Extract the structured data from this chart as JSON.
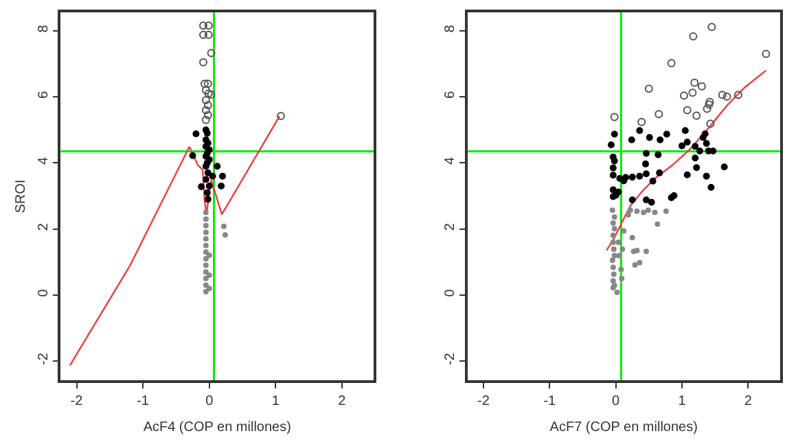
{
  "chart_data": [
    {
      "type": "scatter",
      "xlabel": "AcF4 (COP en millones)",
      "ylabel": "SROI",
      "xlim": [
        -2.24,
        2.48
      ],
      "ylim": [
        -2.58,
        8.56
      ],
      "xticks": [
        -2,
        -1,
        0,
        1,
        2
      ],
      "yticks": [
        -2,
        0,
        2,
        4,
        6,
        8
      ],
      "grid": false,
      "ref_lines": [
        {
          "axis": "y",
          "value": 4.35,
          "color": "#00ee00"
        },
        {
          "axis": "x",
          "value": 0.07,
          "color": "#00ee00"
        }
      ],
      "series": [
        {
          "marker": "circle",
          "color": "#555555",
          "x": [
            -0.09,
            -0.01,
            -0.09,
            -0.01,
            0.03,
            -0.09,
            0.03,
            -0.07,
            -0.02,
            -0.05,
            -0.01,
            -0.05,
            -0.02,
            -0.05,
            -0.02,
            -0.05,
            1.08
          ],
          "values": [
            8.16,
            8.16,
            7.88,
            7.88,
            7.33,
            7.05,
            6.07,
            6.4,
            6.4,
            6.2,
            6.1,
            5.9,
            5.75,
            5.6,
            5.45,
            5.3,
            5.42
          ]
        },
        {
          "marker": "circle",
          "color": "#000000",
          "x": [
            -0.2,
            -0.25,
            -0.12,
            -0.05,
            -0.03,
            -0.05,
            -0.02,
            -0.05,
            0,
            -0.03,
            -0.05,
            0,
            -0.03,
            -0.05,
            0.1,
            0.12,
            0.05,
            0.2,
            0.18,
            -0.02,
            -0.05,
            0,
            -0.03,
            -0.02
          ],
          "values": [
            4.88,
            4.22,
            3.28,
            5.0,
            4.9,
            4.7,
            4.6,
            4.5,
            4.4,
            4.3,
            4.2,
            4.1,
            4.0,
            3.9,
            null,
            3.9,
            3.6,
            3.6,
            3.3,
            3.7,
            3.5,
            3.3,
            3.1,
            2.9
          ]
        },
        {
          "marker": "circle",
          "color": "#888888",
          "x": [
            -0.05,
            -0.05,
            -0.05,
            -0.05,
            -0.05,
            -0.05,
            -0.05,
            -0.05,
            -0.05,
            -0.05,
            -0.05,
            -0.05,
            -0.05,
            0.0,
            0.0,
            0.0,
            0.22,
            0.24
          ],
          "values": [
            0.1,
            0.3,
            0.5,
            0.7,
            0.9,
            1.1,
            1.3,
            1.5,
            1.7,
            1.9,
            2.1,
            2.3,
            2.5,
            0.2,
            0.6,
            1.2,
            2.08,
            1.82
          ]
        },
        {
          "type": "line",
          "marker": "none",
          "color": "#f03c3c",
          "x": [
            -2.1,
            -1.19,
            -0.3,
            -0.17,
            -0.1,
            -0.07,
            -0.04,
            0,
            0.03,
            0.19,
            1.06
          ],
          "values": [
            -2.13,
            0.91,
            4.49,
            3.93,
            3.8,
            2.85,
            2.44,
            3.13,
            3.48,
            2.44,
            5.42
          ]
        }
      ]
    },
    {
      "type": "scatter",
      "xlabel": "AcF7 (COP en millones)",
      "xlim": [
        -2.24,
        2.48
      ],
      "ylim": [
        -2.58,
        8.56
      ],
      "xticks": [
        -2,
        -1,
        0,
        1,
        2
      ],
      "yticks": [
        -2,
        0,
        2,
        4,
        6,
        8
      ],
      "grid": false,
      "ref_lines": [
        {
          "axis": "y",
          "value": 4.35,
          "color": "#00ee00"
        },
        {
          "axis": "x",
          "value": 0.08,
          "color": "#00ee00"
        }
      ],
      "series": [
        {
          "marker": "circle",
          "color": "#555555",
          "x": [
            1.45,
            1.17,
            0.84,
            2.27,
            0.5,
            1.19,
            1.3,
            1.03,
            1.16,
            1.61,
            1.68,
            1.85,
            1.42,
            1.41,
            1.38,
            1.08,
            1.22,
            0.65,
            0.39,
            -0.02,
            1.43
          ],
          "values": [
            8.12,
            7.83,
            7.02,
            7.3,
            6.25,
            6.43,
            6.32,
            6.04,
            6.13,
            6.06,
            6.01,
            6.06,
            5.85,
            5.77,
            5.64,
            5.6,
            5.43,
            5.48,
            5.24,
            5.39,
            5.19
          ]
        },
        {
          "marker": "circle",
          "color": "#000000",
          "x": [
            -0.02,
            -0.07,
            0.24,
            0.36,
            0.51,
            0.67,
            0.77,
            1.05,
            1.08,
            1.2,
            1.32,
            1.37,
            1.35,
            1.0,
            0.46,
            0.64,
            1.4,
            1.47,
            1.27,
            1.2,
            -0.04,
            -0.02,
            -0.04,
            -0.04,
            0.06,
            0.15,
            0.36,
            0.25,
            0.45,
            0.46,
            0.66,
            0.56,
            1.2,
            1.22,
            1.08,
            1.37,
            1.64,
            1.44,
            -0.04,
            -0.04,
            0.0,
            0.04,
            0.25,
            0.46,
            0.54,
            0.84,
            0.88,
            0.12
          ],
          "values": [
            4.87,
            4.55,
            4.7,
            4.98,
            4.77,
            4.7,
            4.87,
            4.98,
            4.63,
            4.5,
            4.77,
            4.59,
            4.88,
            4.52,
            4.29,
            4.25,
            4.36,
            4.36,
            4.36,
            4.15,
            4.18,
            4.06,
            3.85,
            3.63,
            3.53,
            3.56,
            3.6,
            3.57,
            3.97,
            3.67,
            3.7,
            3.45,
            null,
            3.86,
            3.64,
            3.6,
            3.88,
            3.26,
            3.19,
            2.98,
            3.02,
            3.12,
            2.88,
            2.88,
            2.81,
            2.95,
            3.01,
            3.46
          ]
        },
        {
          "marker": "circle",
          "color": "#888888",
          "x": [
            -0.04,
            -0.04,
            -0.03,
            -0.04,
            -0.05,
            -0.02,
            -0.03,
            -0.04,
            -0.04,
            -0.02,
            -0.04,
            -0.02,
            -0.05,
            0.04,
            0.05,
            0.08,
            0.09,
            0.1,
            0.12,
            0.19,
            0.25,
            0.27,
            0.32,
            0.36,
            0.29,
            0.22,
            0.32,
            0.42,
            0.49,
            0.59,
            0.76,
            0.63,
            0.46,
            0.02,
            -0.02
          ],
          "values": [
            0.22,
            0.43,
            0.63,
            0.84,
            1.05,
            1.19,
            1.39,
            1.6,
            1.81,
            2.01,
            2.18,
            2.36,
            2.57,
            1.6,
            1.19,
            0.77,
            0.5,
            1.39,
            1.94,
            2.43,
            1.74,
            1.32,
            1.35,
            0.98,
            0.91,
            2.57,
            2.54,
            2.5,
            2.57,
            2.5,
            2.54,
            2.15,
            1.32,
            0.08,
            0.29
          ]
        },
        {
          "type": "line",
          "marker": "none",
          "color": "#f03c3c",
          "x": [
            -0.14,
            -0.02,
            0.08,
            0.22,
            0.39,
            0.59,
            0.86,
            1.13,
            1.4,
            1.68,
            1.95,
            2.27
          ],
          "values": [
            1.35,
            1.74,
            2.15,
            2.7,
            3.12,
            3.53,
            3.94,
            4.43,
            5.05,
            5.74,
            6.29,
            6.8
          ]
        }
      ]
    }
  ]
}
